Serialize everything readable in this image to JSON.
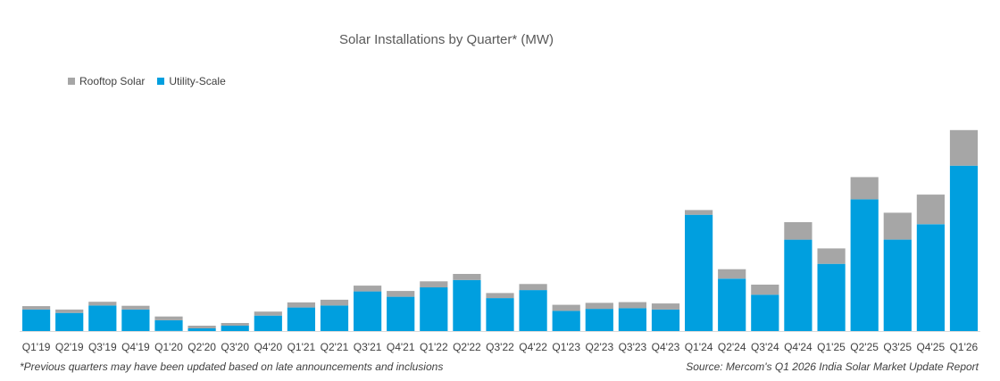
{
  "chart_data": {
    "type": "bar",
    "stacked": true,
    "title": "Solar Installations by Quarter* (MW)",
    "xlabel": "",
    "ylabel": "",
    "grid": false,
    "legend_position": "top-left",
    "categories": [
      "Q1'19",
      "Q2'19",
      "Q3'19",
      "Q4'19",
      "Q1'20",
      "Q2'20",
      "Q3'20",
      "Q4'20",
      "Q1'21",
      "Q2'21",
      "Q3'21",
      "Q4'21",
      "Q1'22",
      "Q2'22",
      "Q3'22",
      "Q4'22",
      "Q1'23",
      "Q2'23",
      "Q3'23",
      "Q4'23",
      "Q1'24",
      "Q2'24",
      "Q3'24",
      "Q4'24",
      "Q1'25",
      "Q2'25",
      "Q3'25",
      "Q4'25",
      "Q1'26"
    ],
    "series": [
      {
        "name": "Utility-Scale",
        "color": "#009FDF",
        "values": [
          1600,
          1350,
          1900,
          1600,
          800,
          200,
          400,
          1150,
          1750,
          1900,
          2950,
          2550,
          3250,
          3800,
          2450,
          3050,
          1500,
          1650,
          1700,
          1600,
          8650,
          3900,
          2700,
          6800,
          5000,
          9800,
          6800,
          7950,
          12300
        ]
      },
      {
        "name": "Rooftop Solar",
        "color": "#A6A6A6",
        "values": [
          250,
          250,
          280,
          280,
          280,
          200,
          200,
          300,
          380,
          430,
          430,
          430,
          450,
          450,
          380,
          450,
          450,
          450,
          450,
          450,
          350,
          700,
          750,
          1300,
          1150,
          1650,
          2000,
          2200,
          2650
        ]
      }
    ],
    "ylim": [
      0,
      16000
    ]
  },
  "footnote": "*Previous quarters may have been updated based on late announcements and inclusions",
  "source": "Source: Mercom's Q1 2026 India Solar Market Update Report"
}
